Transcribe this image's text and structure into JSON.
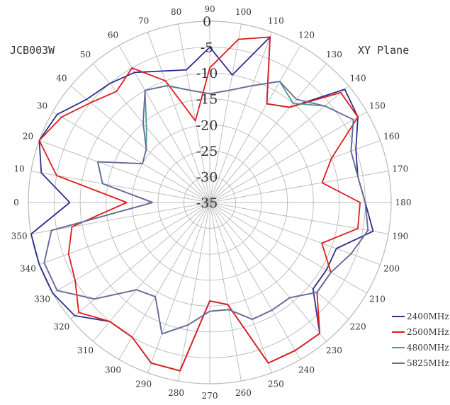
{
  "chart_data": {
    "type": "polar-line",
    "title": "JCB003W",
    "subtitle": "XY Plane",
    "angle_unit": "degrees",
    "angle_ticks": [
      0,
      10,
      20,
      30,
      40,
      50,
      60,
      70,
      80,
      90,
      100,
      110,
      120,
      130,
      140,
      150,
      160,
      170,
      180,
      190,
      200,
      210,
      220,
      230,
      240,
      250,
      260,
      270,
      280,
      290,
      300,
      310,
      320,
      330,
      340,
      350
    ],
    "radial_ticks": [
      0,
      -5,
      -10,
      -15,
      -20,
      -25,
      -30,
      -35
    ],
    "rlim": [
      -35,
      0
    ],
    "grid": true,
    "legend_position": "bottom-right",
    "angles": [
      0,
      10,
      20,
      30,
      40,
      50,
      60,
      70,
      80,
      90,
      100,
      110,
      120,
      130,
      140,
      150,
      160,
      170,
      180,
      190,
      200,
      210,
      220,
      230,
      240,
      250,
      260,
      270,
      280,
      290,
      300,
      310,
      320,
      330,
      340,
      350
    ],
    "series": [
      {
        "name": "2400MHz",
        "color": "#2e2e8c",
        "values": [
          -8,
          -2,
          0,
          -1,
          -4,
          -5,
          -6,
          -8,
          -9,
          -5,
          -10,
          -1,
          -13,
          -11,
          -1,
          -2,
          -5,
          -6,
          -5,
          -3,
          -9,
          -9,
          -9,
          -2,
          -2,
          -2,
          -15,
          -16,
          -2,
          -2,
          -5,
          -5,
          -1,
          0,
          0,
          0
        ]
      },
      {
        "name": "2500MHz",
        "color": "#e21b1b",
        "values": [
          -19,
          -5,
          0,
          -2,
          -5,
          -7,
          -5,
          -10,
          -19,
          -9,
          -3,
          -1,
          -13,
          -11,
          -2,
          -2,
          -10,
          -13,
          -6,
          -6,
          -12,
          -8,
          -8,
          -2,
          -2,
          -2,
          -15,
          -16,
          -2,
          -2,
          -5,
          -5,
          -2,
          -5,
          -6,
          -8
        ]
      },
      {
        "name": "4800MHz",
        "color": "#4a9e8e",
        "values": [
          -24,
          -14,
          -12,
          -20,
          -19,
          -16,
          -10,
          -11,
          -13,
          -14,
          -13,
          -11,
          -8,
          -10,
          -6,
          -3,
          -6,
          -6,
          -5,
          -4,
          -6,
          -8,
          -8,
          -11,
          -11,
          -11,
          -14,
          -14,
          -11,
          -8,
          -14,
          -13,
          -6,
          -1,
          -1,
          -4
        ]
      },
      {
        "name": "5825MHz",
        "color": "#6a6a9a",
        "values": [
          -24,
          -14,
          -12,
          -20,
          -19,
          -15,
          -10,
          -11,
          -13,
          -14,
          -13,
          -11,
          -8,
          -9,
          -6,
          -3,
          -6,
          -6,
          -5,
          -4,
          -6,
          -8,
          -8,
          -11,
          -11,
          -11,
          -14,
          -14,
          -11,
          -8,
          -14,
          -13,
          -6,
          -1,
          -1,
          -4
        ]
      }
    ]
  }
}
